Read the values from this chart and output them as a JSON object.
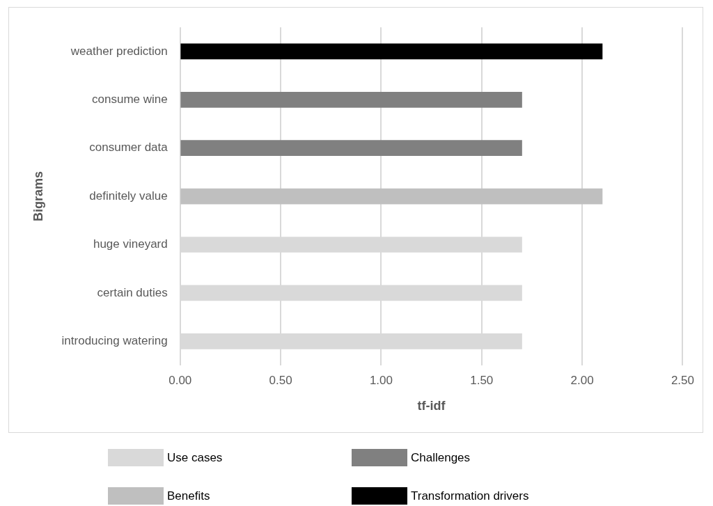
{
  "chart_data": {
    "type": "bar",
    "orientation": "horizontal",
    "xlabel": "tf-idf",
    "ylabel": "Bigrams",
    "categories": [
      "weather prediction",
      "consume wine",
      "consumer data",
      "definitely value",
      "huge vineyard",
      "certain duties",
      "introducing watering"
    ],
    "series": [
      {
        "name": "Use cases",
        "color": "#d9d9d9",
        "values": [
          null,
          null,
          null,
          null,
          1.7,
          1.7,
          1.7
        ]
      },
      {
        "name": "Challenges",
        "color": "#808080",
        "values": [
          null,
          1.7,
          1.7,
          null,
          null,
          null,
          null
        ]
      },
      {
        "name": "Benefits",
        "color": "#bfbfbf",
        "values": [
          null,
          null,
          null,
          2.1,
          null,
          null,
          null
        ]
      },
      {
        "name": "Transformation drivers",
        "color": "#000000",
        "values": [
          2.1,
          null,
          null,
          null,
          null,
          null,
          null
        ]
      }
    ],
    "xlim": [
      0,
      2.5
    ],
    "xticks": [
      {
        "value": 0,
        "label": "0.00"
      },
      {
        "value": 0.5,
        "label": "0.50"
      },
      {
        "value": 1,
        "label": "1.00"
      },
      {
        "value": 1.5,
        "label": "1.50"
      },
      {
        "value": 2,
        "label": "2.00"
      },
      {
        "value": 2.5,
        "label": "2.50"
      }
    ],
    "grid": "x",
    "legend": "bottom"
  }
}
